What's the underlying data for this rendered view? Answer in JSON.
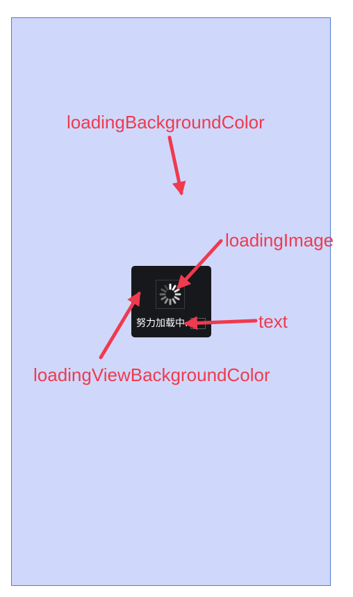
{
  "screen": {
    "background_color": "#cfd8fb",
    "border_color": "#4a7bd1"
  },
  "loading_view": {
    "background_color": "#17181c",
    "text": "努力加载中..."
  },
  "annotations": {
    "loading_background_color": "loadingBackgroundColor",
    "loading_image": "loadingImage",
    "text": "text",
    "loading_view_background_color": "loadingViewBackgroundColor",
    "color": "#ef3a4f"
  },
  "icons": {
    "spinner": "spinner-icon"
  }
}
